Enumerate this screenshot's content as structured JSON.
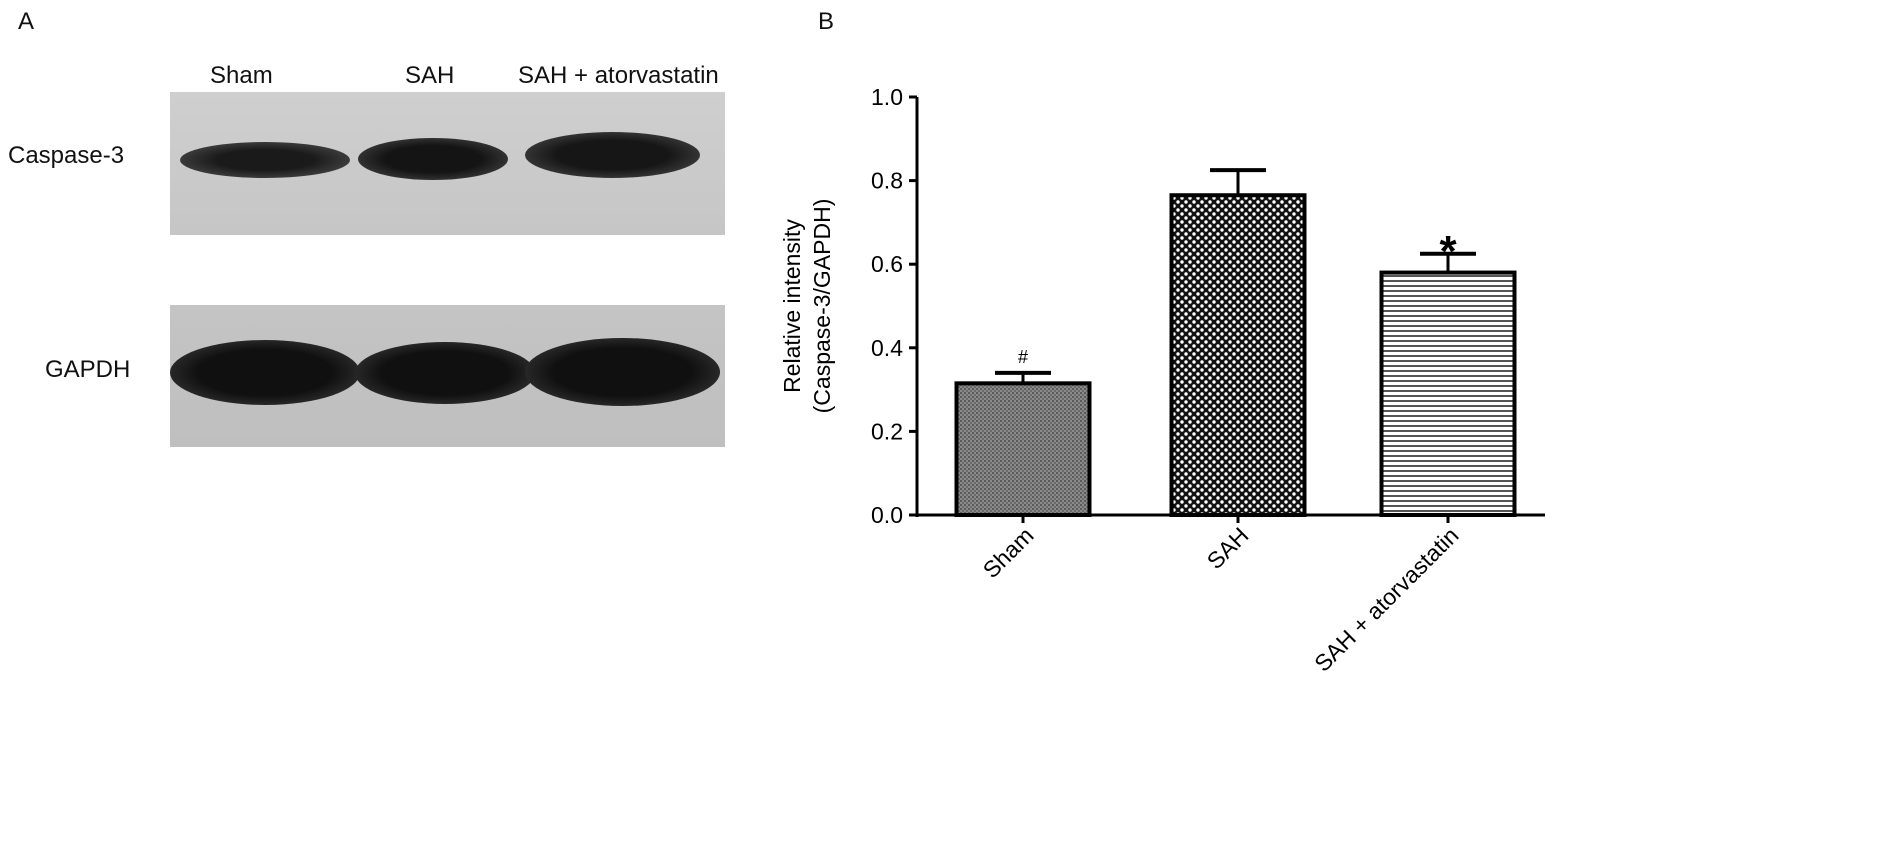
{
  "panel_a": {
    "label": "A",
    "lanes": [
      "Sham",
      "SAH",
      "SAH + atorvastatin"
    ],
    "rows": [
      "Caspase-3",
      "GAPDH"
    ]
  },
  "panel_b": {
    "label": "B"
  },
  "chart_data": {
    "type": "bar",
    "categories": [
      "Sham",
      "SAH",
      "SAH + atorvastatin"
    ],
    "values": [
      0.315,
      0.765,
      0.58
    ],
    "error_upper": [
      0.34,
      0.825,
      0.625
    ],
    "annotations": [
      "#",
      "",
      "*"
    ],
    "patterns": [
      "fine-gray",
      "checkerboard",
      "horizontal-lines"
    ],
    "title": "",
    "xlabel": "",
    "ylabel_line1": "Relative intensity",
    "ylabel_line2": "(Caspase-3/GAPDH)",
    "ylim": [
      0,
      1.0
    ],
    "yticks": [
      "0.0",
      "0.2",
      "0.4",
      "0.6",
      "0.8",
      "1.0"
    ],
    "grid": false
  }
}
